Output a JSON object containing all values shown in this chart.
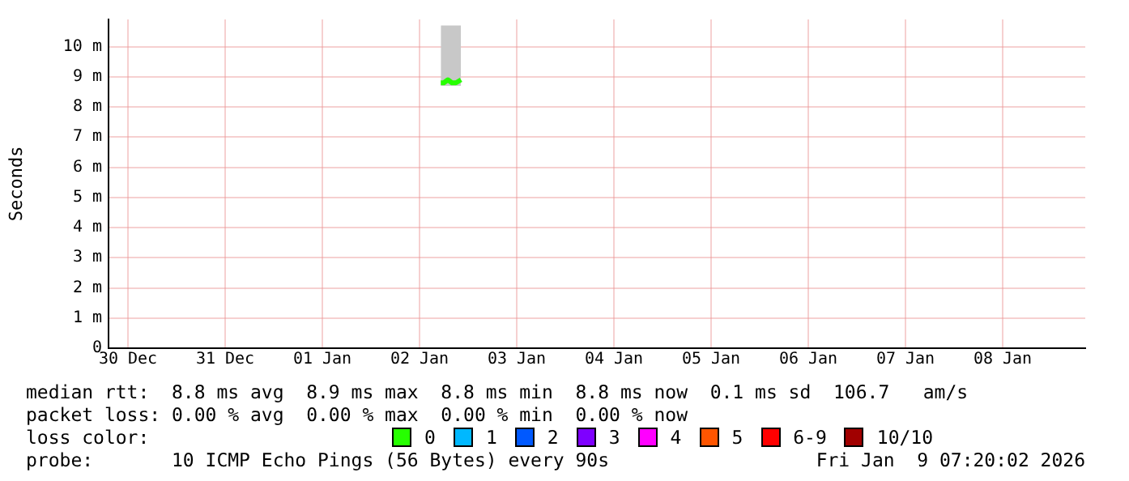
{
  "chart_data": {
    "type": "line",
    "ylabel": "Seconds",
    "legend_title": "loss color:",
    "legend": "bottom",
    "grid": true,
    "line_style": "solid",
    "marker": "none",
    "x": [
      "2026-01-02T05:15",
      "2026-01-02T06:00",
      "2026-01-02T07:00",
      "2026-01-02T08:00",
      "2026-01-02T09:00",
      "2026-01-02T10:15"
    ],
    "xlim": [
      "2025-12-29T19:12",
      "2026-01-08T20:24"
    ],
    "xticks": [
      {
        "value": "2025-12-30",
        "label": "30 Dec"
      },
      {
        "value": "2025-12-31",
        "label": "31 Dec"
      },
      {
        "value": "2026-01-01",
        "label": "01 Jan"
      },
      {
        "value": "2026-01-02",
        "label": "02 Jan"
      },
      {
        "value": "2026-01-03",
        "label": "03 Jan"
      },
      {
        "value": "2026-01-04",
        "label": "04 Jan"
      },
      {
        "value": "2026-01-05",
        "label": "05 Jan"
      },
      {
        "value": "2026-01-06",
        "label": "06 Jan"
      },
      {
        "value": "2026-01-07",
        "label": "07 Jan"
      },
      {
        "value": "2026-01-08",
        "label": "08 Jan"
      }
    ],
    "ylim": [
      0,
      10.9
    ],
    "yticks": [
      0,
      {
        "value": 1,
        "label": "1 m"
      },
      {
        "value": 2,
        "label": "2 m"
      },
      {
        "value": 3,
        "label": "3 m"
      },
      {
        "value": 4,
        "label": "4 m"
      },
      {
        "value": 5,
        "label": "5 m"
      },
      {
        "value": 6,
        "label": "6 m"
      },
      {
        "value": 7,
        "label": "7 m"
      },
      {
        "value": 8,
        "label": "8 m"
      },
      {
        "value": 9,
        "label": "9 m"
      },
      {
        "value": 10,
        "label": "10 m"
      }
    ],
    "series": [
      {
        "name": "0",
        "color": "#26ff00",
        "values": [
          8.8,
          8.8,
          8.9,
          8.8,
          8.8,
          8.9
        ],
        "lower": [
          8.7,
          8.7,
          8.7,
          8.7,
          8.7,
          8.7
        ],
        "upper": [
          10.7,
          10.7,
          10.7,
          10.7,
          10.7,
          10.7
        ]
      },
      {
        "name": "1",
        "color": "#00b8ff",
        "values": [
          null,
          null,
          null,
          null,
          null,
          null
        ]
      },
      {
        "name": "2",
        "color": "#0059ff",
        "values": [
          null,
          null,
          null,
          null,
          null,
          null
        ]
      },
      {
        "name": "3",
        "color": "#7e00ff",
        "values": [
          null,
          null,
          null,
          null,
          null,
          null
        ]
      },
      {
        "name": "4",
        "color": "#ff00ff",
        "values": [
          null,
          null,
          null,
          null,
          null,
          null
        ]
      },
      {
        "name": "5",
        "color": "#ff5500",
        "values": [
          null,
          null,
          null,
          null,
          null,
          null
        ]
      },
      {
        "name": "6-9",
        "color": "#ff0000",
        "values": [
          null,
          null,
          null,
          null,
          null,
          null
        ]
      },
      {
        "name": "10/10",
        "color": "#a10000",
        "values": [
          null,
          null,
          null,
          null,
          null,
          null
        ]
      }
    ],
    "annotations": [
      "median rtt:  8.8 ms avg  8.9 ms max  8.8 ms min  8.8 ms now  0.1 ms sd  106.7   am/s",
      "packet loss: 0.00 % avg  0.00 % max  0.00 % min  0.00 % now",
      "probe:       10 ICMP Echo Pings (56 Bytes) every 90s",
      "Fri Jan  9 07:20:02 2026"
    ]
  }
}
